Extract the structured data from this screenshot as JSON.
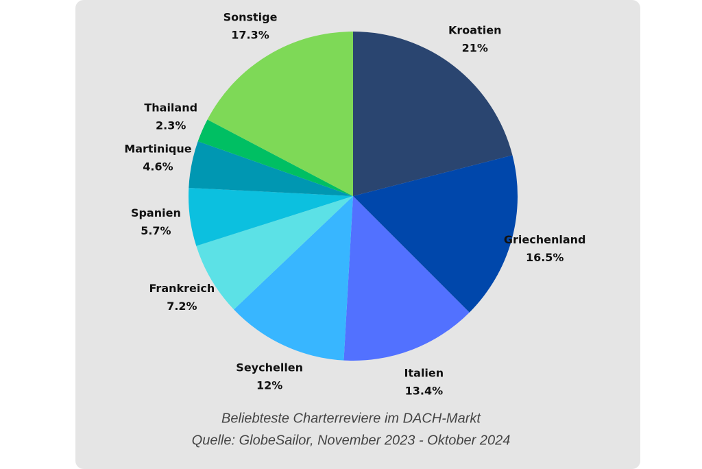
{
  "chart_data": {
    "type": "pie",
    "title": "Beliebteste Charterreviere im DACH-Markt",
    "subtitle": "Quelle: GlobeSailor, November 2023 - Oktober 2024",
    "categories": [
      "Kroatien",
      "Griechenland",
      "Italien",
      "Seychellen",
      "Frankreich",
      "Spanien",
      "Martinique",
      "Thailand",
      "Sonstige"
    ],
    "values": [
      21,
      16.5,
      13.4,
      12,
      7.2,
      5.7,
      4.6,
      2.3,
      17.3
    ],
    "value_labels": [
      "21%",
      "16.5%",
      "13.4%",
      "12%",
      "7.2%",
      "5.7%",
      "4.6%",
      "2.3%",
      "17.3%"
    ],
    "colors": [
      "#2a4570",
      "#0047ab",
      "#5271ff",
      "#38b6ff",
      "#5ce1e6",
      "#0cc0df",
      "#0097b2",
      "#00bf63",
      "#7ed957"
    ]
  }
}
